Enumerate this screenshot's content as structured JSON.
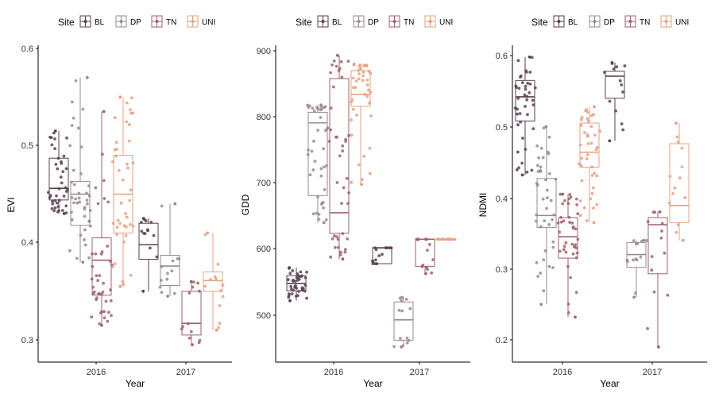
{
  "legend": {
    "title": "Site",
    "entries": [
      {
        "name": "BL",
        "color": "#5a4050"
      },
      {
        "name": "DP",
        "color": "#9a8a90"
      },
      {
        "name": "TN",
        "color": "#a0626a"
      },
      {
        "name": "UNI",
        "color": "#e8a080"
      }
    ]
  },
  "chart_data": [
    {
      "type": "boxplot",
      "xlabel": "Year",
      "ylabel": "EVI",
      "categories": [
        "2016",
        "2017"
      ],
      "ylim": [
        0.28,
        0.605
      ],
      "yticks": [
        "0.3",
        "0.4",
        "0.5",
        "0.6"
      ],
      "legend_placement": "top",
      "grid": false,
      "series": [
        {
          "name": "BL",
          "boxes": [
            {
              "year": "2016",
              "min": 0.43,
              "q1": 0.444,
              "median": 0.456,
              "q3": 0.487,
              "max": 0.515
            },
            {
              "year": "2017",
              "min": 0.35,
              "q1": 0.383,
              "median": 0.398,
              "q3": 0.42,
              "max": 0.425
            }
          ]
        },
        {
          "name": "DP",
          "boxes": [
            {
              "year": "2016",
              "min": 0.38,
              "q1": 0.418,
              "median": 0.45,
              "q3": 0.463,
              "max": 0.57
            },
            {
              "year": "2017",
              "min": 0.345,
              "q1": 0.356,
              "median": 0.376,
              "q3": 0.387,
              "max": 0.44
            }
          ]
        },
        {
          "name": "TN",
          "boxes": [
            {
              "year": "2016",
              "min": 0.315,
              "q1": 0.346,
              "median": 0.382,
              "q3": 0.405,
              "max": 0.535
            },
            {
              "year": "2017",
              "min": 0.295,
              "q1": 0.305,
              "median": 0.317,
              "q3": 0.35,
              "max": 0.36
            }
          ]
        },
        {
          "name": "UNI",
          "boxes": [
            {
              "year": "2016",
              "min": 0.355,
              "q1": 0.41,
              "median": 0.45,
              "q3": 0.49,
              "max": 0.55
            },
            {
              "year": "2017",
              "min": 0.31,
              "q1": 0.35,
              "median": 0.361,
              "q3": 0.37,
              "max": 0.41
            }
          ]
        }
      ]
    },
    {
      "type": "boxplot",
      "xlabel": "Year",
      "ylabel": "GDD",
      "categories": [
        "2016",
        "2017"
      ],
      "ylim": [
        450,
        910
      ],
      "yticks": [
        "500",
        "600",
        "700",
        "800",
        "900"
      ],
      "legend_placement": "top",
      "grid": false,
      "series": [
        {
          "name": "BL",
          "boxes": [
            {
              "year": "2016",
              "min": 522,
              "q1": 537,
              "median": 548,
              "q3": 560,
              "max": 572
            },
            {
              "year": "2017",
              "min": 578,
              "q1": 578,
              "median": 602,
              "q3": 602,
              "max": 602
            }
          ]
        },
        {
          "name": "DP",
          "boxes": [
            {
              "year": "2016",
              "min": 640,
              "q1": 681,
              "median": 791,
              "q3": 807,
              "max": 818
            },
            {
              "year": "2017",
              "min": 452,
              "q1": 462,
              "median": 493,
              "q3": 520,
              "max": 527
            }
          ]
        },
        {
          "name": "TN",
          "boxes": [
            {
              "year": "2016",
              "min": 585,
              "q1": 624,
              "median": 655,
              "q3": 858,
              "max": 893
            },
            {
              "year": "2017",
              "min": 563,
              "q1": 574,
              "median": 615,
              "q3": 615,
              "max": 615
            }
          ]
        },
        {
          "name": "UNI",
          "boxes": [
            {
              "year": "2016",
              "min": 698,
              "q1": 816,
              "median": 834,
              "q3": 870,
              "max": 880
            },
            {
              "year": "2017",
              "min": 615,
              "q1": 615,
              "median": 615,
              "q3": 615,
              "max": 615
            }
          ]
        }
      ]
    },
    {
      "type": "boxplot",
      "xlabel": "Year",
      "ylabel": "NDMI",
      "categories": [
        "2016",
        "2017"
      ],
      "ylim": [
        0.185,
        0.61
      ],
      "yticks": [
        "0.2",
        "0.3",
        "0.4",
        "0.5",
        "0.6"
      ],
      "legend_placement": "top",
      "grid": false,
      "series": [
        {
          "name": "BL",
          "boxes": [
            {
              "year": "2016",
              "min": 0.432,
              "q1": 0.508,
              "median": 0.542,
              "q3": 0.565,
              "max": 0.598
            },
            {
              "year": "2017",
              "min": 0.48,
              "q1": 0.54,
              "median": 0.571,
              "q3": 0.578,
              "max": 0.59
            }
          ]
        },
        {
          "name": "DP",
          "boxes": [
            {
              "year": "2016",
              "min": 0.25,
              "q1": 0.358,
              "median": 0.375,
              "q3": 0.427,
              "max": 0.5
            },
            {
              "year": "2017",
              "min": 0.26,
              "q1": 0.302,
              "median": 0.32,
              "q3": 0.337,
              "max": 0.34
            }
          ]
        },
        {
          "name": "TN",
          "boxes": [
            {
              "year": "2016",
              "min": 0.232,
              "q1": 0.315,
              "median": 0.345,
              "q3": 0.372,
              "max": 0.405
            },
            {
              "year": "2017",
              "min": 0.19,
              "q1": 0.293,
              "median": 0.362,
              "q3": 0.372,
              "max": 0.38
            }
          ]
        },
        {
          "name": "UNI",
          "boxes": [
            {
              "year": "2016",
              "min": 0.365,
              "q1": 0.443,
              "median": 0.464,
              "q3": 0.505,
              "max": 0.528
            },
            {
              "year": "2017",
              "min": 0.34,
              "q1": 0.365,
              "median": 0.389,
              "q3": 0.476,
              "max": 0.505
            }
          ]
        }
      ]
    }
  ]
}
